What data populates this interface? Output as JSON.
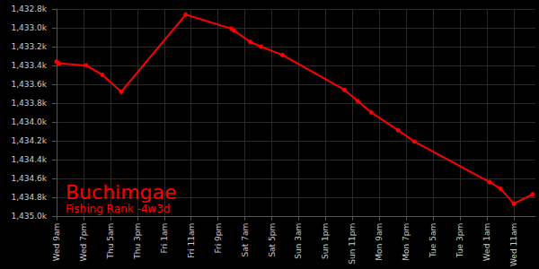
{
  "chart_data": {
    "type": "line",
    "title": "Buchimgae",
    "subtitle": "Fishing Rank -4w3d",
    "x": [
      0,
      1,
      11,
      17,
      24,
      48,
      65,
      66,
      72,
      76,
      84,
      107,
      112,
      117,
      127,
      133,
      161,
      165,
      170,
      177
    ],
    "values": [
      1433.36,
      1433.38,
      1433.4,
      1433.5,
      1433.68,
      1432.86,
      1433.01,
      1433.03,
      1433.15,
      1433.2,
      1433.29,
      1433.66,
      1433.78,
      1433.9,
      1434.09,
      1434.21,
      1434.64,
      1434.71,
      1434.87,
      1434.77
    ],
    "color": "#ff0000",
    "marker": "circle",
    "grid": true,
    "xlim": [
      -1,
      178
    ],
    "xticks": [
      {
        "value": 0,
        "label": "Wed 9am"
      },
      {
        "value": 10,
        "label": "Wed 7pm"
      },
      {
        "value": 20,
        "label": "Thu 5am"
      },
      {
        "value": 30,
        "label": "Thu 3pm"
      },
      {
        "value": 40,
        "label": "Fri 1am"
      },
      {
        "value": 50,
        "label": "Fri 11am"
      },
      {
        "value": 60,
        "label": "Fri 9pm"
      },
      {
        "value": 70,
        "label": "Sat 7am"
      },
      {
        "value": 80,
        "label": "Sat 5pm"
      },
      {
        "value": 90,
        "label": "Sun 3am"
      },
      {
        "value": 100,
        "label": "Sun 1pm"
      },
      {
        "value": 110,
        "label": "Sun 11pm"
      },
      {
        "value": 120,
        "label": "Mon 9am"
      },
      {
        "value": 130,
        "label": "Mon 7pm"
      },
      {
        "value": 140,
        "label": "Tue 5am"
      },
      {
        "value": 150,
        "label": "Tue 3pm"
      },
      {
        "value": 160,
        "label": "Wed 1am"
      },
      {
        "value": 170,
        "label": "Wed 11am"
      }
    ],
    "ylim": [
      1435.0,
      1432.8
    ],
    "yticks": [
      {
        "value": 1432.8,
        "label": "1,432.8k"
      },
      {
        "value": 1433.0,
        "label": "1,433.0k"
      },
      {
        "value": 1433.2,
        "label": "1,433.2k"
      },
      {
        "value": 1433.4,
        "label": "1,433.4k"
      },
      {
        "value": 1433.6,
        "label": "1,433.6k"
      },
      {
        "value": 1433.8,
        "label": "1,433.8k"
      },
      {
        "value": 1434.0,
        "label": "1,434.0k"
      },
      {
        "value": 1434.2,
        "label": "1,434.2k"
      },
      {
        "value": 1434.4,
        "label": "1,434.4k"
      },
      {
        "value": 1434.6,
        "label": "1,434.6k"
      },
      {
        "value": 1434.8,
        "label": "1,434.8k"
      },
      {
        "value": 1435.0,
        "label": "1,435.0k"
      }
    ]
  }
}
